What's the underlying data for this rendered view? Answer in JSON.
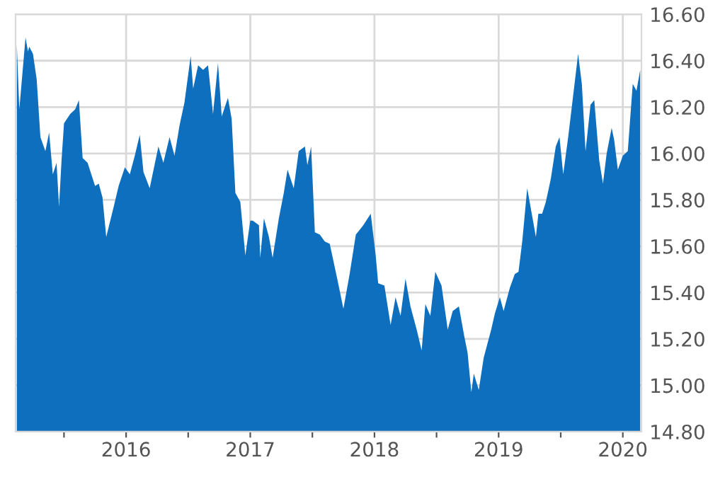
{
  "chart_data": {
    "type": "area",
    "x": [
      2015.12,
      2015.14,
      2015.19,
      2015.21,
      2015.22,
      2015.25,
      2015.28,
      2015.31,
      2015.35,
      2015.38,
      2015.41,
      2015.44,
      2015.46,
      2015.48,
      2015.5,
      2015.55,
      2015.59,
      2015.62,
      2015.65,
      2015.69,
      2015.75,
      2015.78,
      2015.81,
      2015.84,
      2015.9,
      2015.94,
      2015.99,
      2016.03,
      2016.07,
      2016.11,
      2016.14,
      2016.19,
      2016.26,
      2016.3,
      2016.35,
      2016.39,
      2016.43,
      2016.47,
      2016.52,
      2016.54,
      2016.58,
      2016.62,
      2016.66,
      2016.7,
      2016.74,
      2016.77,
      2016.82,
      2016.85,
      2016.88,
      2016.92,
      2016.96,
      2017.0,
      2017.02,
      2017.07,
      2017.08,
      2017.11,
      2017.15,
      2017.18,
      2017.23,
      2017.27,
      2017.3,
      2017.35,
      2017.39,
      2017.44,
      2017.46,
      2017.49,
      2017.52,
      2017.56,
      2017.6,
      2017.64,
      2017.7,
      2017.75,
      2017.8,
      2017.85,
      2017.91,
      2017.97,
      2018.01,
      2018.03,
      2018.08,
      2018.13,
      2018.17,
      2018.21,
      2018.25,
      2018.29,
      2018.34,
      2018.38,
      2018.41,
      2018.45,
      2018.49,
      2018.54,
      2018.59,
      2018.63,
      2018.68,
      2018.72,
      2018.75,
      2018.78,
      2018.8,
      2018.84,
      2018.88,
      2018.94,
      2018.97,
      2019.01,
      2019.04,
      2019.09,
      2019.13,
      2019.16,
      2019.19,
      2019.23,
      2019.27,
      2019.3,
      2019.32,
      2019.35,
      2019.38,
      2019.42,
      2019.46,
      2019.49,
      2019.52,
      2019.56,
      2019.6,
      2019.64,
      2019.67,
      2019.7,
      2019.74,
      2019.77,
      2019.81,
      2019.84,
      2019.87,
      2019.91,
      2019.93,
      2019.96,
      2020.0,
      2020.04,
      2020.08,
      2020.11,
      2020.14
    ],
    "series": [
      {
        "color": "#0f6fbf",
        "values": [
          16.47,
          16.19,
          16.5,
          16.44,
          16.46,
          16.43,
          16.32,
          16.07,
          16.01,
          16.09,
          15.91,
          15.96,
          15.77,
          15.97,
          16.13,
          16.17,
          16.19,
          16.23,
          15.98,
          15.96,
          15.86,
          15.87,
          15.81,
          15.64,
          15.77,
          15.86,
          15.94,
          15.91,
          15.99,
          16.08,
          15.92,
          15.85,
          16.03,
          15.96,
          16.07,
          15.99,
          16.12,
          16.22,
          16.42,
          16.28,
          16.38,
          16.36,
          16.38,
          16.17,
          16.39,
          16.16,
          16.24,
          16.15,
          15.83,
          15.79,
          15.56,
          15.71,
          15.71,
          15.69,
          15.55,
          15.72,
          15.64,
          15.55,
          15.72,
          15.83,
          15.93,
          15.85,
          16.01,
          16.03,
          15.95,
          16.03,
          15.66,
          15.65,
          15.62,
          15.61,
          15.46,
          15.33,
          15.48,
          15.65,
          15.69,
          15.74,
          15.56,
          15.44,
          15.43,
          15.26,
          15.38,
          15.3,
          15.46,
          15.34,
          15.24,
          15.15,
          15.35,
          15.3,
          15.49,
          15.43,
          15.24,
          15.32,
          15.34,
          15.22,
          15.14,
          14.97,
          15.05,
          14.98,
          15.12,
          15.24,
          15.31,
          15.38,
          15.32,
          15.42,
          15.48,
          15.49,
          15.62,
          15.85,
          15.73,
          15.64,
          15.74,
          15.74,
          15.79,
          15.89,
          16.03,
          16.07,
          15.91,
          16.07,
          16.25,
          16.43,
          16.3,
          16.01,
          16.21,
          16.23,
          15.97,
          15.87,
          16.0,
          16.11,
          16.06,
          15.93,
          15.99,
          16.01,
          16.3,
          16.27,
          16.36
        ]
      }
    ],
    "xlim": [
      2015.11,
      2020.15
    ],
    "xticks": [
      {
        "value": 2015.5,
        "label": null
      },
      2016,
      {
        "value": 2016.5,
        "label": null
      },
      2017,
      {
        "value": 2017.5,
        "label": null
      },
      2018,
      {
        "value": 2018.5,
        "label": null
      },
      2019,
      {
        "value": 2019.5,
        "label": null
      },
      2020
    ],
    "ylim": [
      14.8,
      16.6
    ],
    "yticks": [
      {
        "value": 14.8,
        "label": "14.80"
      },
      {
        "value": 15.0,
        "label": "15.00"
      },
      {
        "value": 15.2,
        "label": "15.20"
      },
      {
        "value": 15.4,
        "label": "15.40"
      },
      {
        "value": 15.6,
        "label": "15.60"
      },
      {
        "value": 15.8,
        "label": "15.80"
      },
      {
        "value": 16.0,
        "label": "16.00"
      },
      {
        "value": 16.2,
        "label": "16.20"
      },
      {
        "value": 16.4,
        "label": "16.40"
      },
      {
        "value": 16.6,
        "label": "16.60"
      }
    ],
    "grid": true
  }
}
